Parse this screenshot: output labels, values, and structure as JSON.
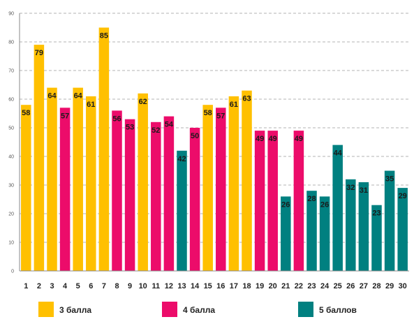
{
  "chart_data": {
    "type": "bar",
    "title": "",
    "xlabel": "",
    "ylabel": "",
    "ylim": [
      0,
      90
    ],
    "y_ticks": [
      0,
      10,
      20,
      30,
      40,
      50,
      60,
      70,
      80,
      90
    ],
    "grid": "horizontal-dashed",
    "legend_placement": "bottom",
    "categories": [
      "1",
      "2",
      "3",
      "4",
      "5",
      "6",
      "7",
      "8",
      "9",
      "10",
      "11",
      "12",
      "13",
      "14",
      "15",
      "16",
      "17",
      "18",
      "19",
      "20",
      "21",
      "22",
      "23",
      "24",
      "25",
      "26",
      "27",
      "28",
      "29",
      "30"
    ],
    "values": [
      58,
      79,
      64,
      57,
      64,
      61,
      85,
      56,
      53,
      62,
      52,
      54,
      42,
      50,
      58,
      57,
      61,
      63,
      49,
      49,
      26,
      49,
      28,
      26,
      44,
      32,
      31,
      23,
      35,
      29
    ],
    "groups": [
      3,
      3,
      3,
      4,
      3,
      3,
      3,
      4,
      4,
      3,
      4,
      4,
      5,
      4,
      3,
      4,
      3,
      3,
      4,
      4,
      5,
      4,
      5,
      5,
      5,
      5,
      5,
      5,
      5,
      5
    ],
    "legend": [
      {
        "key": 3,
        "label": "3 балла",
        "color": "#FFC000"
      },
      {
        "key": 4,
        "label": "4 балла",
        "color": "#EC0C6A"
      },
      {
        "key": 5,
        "label": "5 баллов",
        "color": "#008080"
      }
    ]
  }
}
